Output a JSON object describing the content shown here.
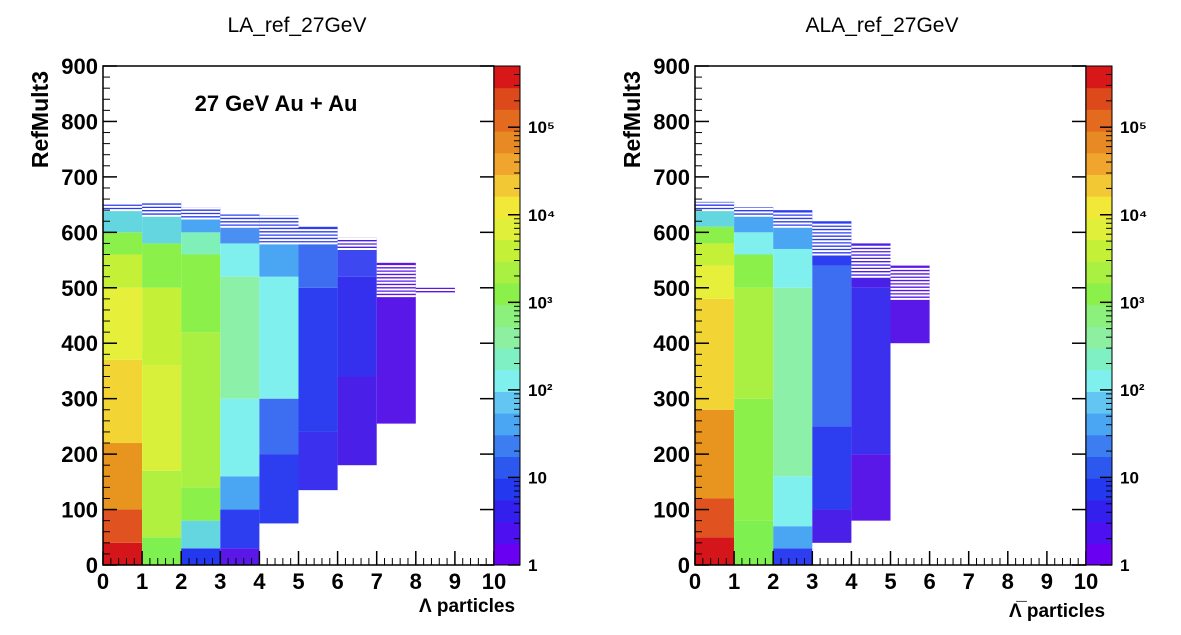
{
  "chart_data": [
    {
      "type": "heatmap",
      "title": "LA_ref_27GeV",
      "xlabel": "Λ particles",
      "ylabel": "RefMult3",
      "annotation": "27 GeV Au + Au",
      "xlim": [
        0,
        10
      ],
      "ylim": [
        0,
        900
      ],
      "x_ticks": [
        "0",
        "1",
        "2",
        "3",
        "4",
        "5",
        "6",
        "7",
        "8",
        "9",
        "10"
      ],
      "y_ticks": [
        "0",
        "100",
        "200",
        "300",
        "400",
        "500",
        "600",
        "700",
        "800",
        "900"
      ],
      "z_scale": "log",
      "z_range": [
        1,
        500000
      ],
      "z_ticks": [
        {
          "value": 1,
          "label": "1"
        },
        {
          "value": 10,
          "label": "10"
        },
        {
          "value": 100,
          "label": "10²"
        },
        {
          "value": 1000,
          "label": "10³"
        },
        {
          "value": 10000,
          "label": "10⁴"
        },
        {
          "value": 100000,
          "label": "10⁵"
        }
      ],
      "bins": [
        {
          "x": 0,
          "ymax": 650,
          "colors": [
            [
              0,
              "#d4161a"
            ],
            [
              40,
              "#e05220"
            ],
            [
              100,
              "#e8951f"
            ],
            [
              220,
              "#f2d535"
            ],
            [
              370,
              "#e6f03a"
            ],
            [
              500,
              "#c4f038"
            ],
            [
              560,
              "#8cf04a"
            ],
            [
              600,
              "#63d6e0"
            ],
            [
              640,
              "#2d3ef0"
            ]
          ]
        },
        {
          "x": 1,
          "ymax": 655,
          "colors": [
            [
              0,
              "#7ef050"
            ],
            [
              50,
              "#b2f040"
            ],
            [
              170,
              "#d8f03a"
            ],
            [
              360,
              "#c4f038"
            ],
            [
              500,
              "#8cf04a"
            ],
            [
              580,
              "#63d6e0"
            ],
            [
              630,
              "#2d3ef0"
            ]
          ]
        },
        {
          "x": 2,
          "ymax": 645,
          "colors": [
            [
              0,
              "#2438f0"
            ],
            [
              30,
              "#63d6e0"
            ],
            [
              80,
              "#8cf04a"
            ],
            [
              140,
              "#a9f042"
            ],
            [
              420,
              "#8cf04a"
            ],
            [
              560,
              "#7ff0b8"
            ],
            [
              600,
              "#4aa6f2"
            ],
            [
              625,
              "#2d3ef0"
            ]
          ]
        },
        {
          "x": 3,
          "ymax": 635,
          "colors": [
            [
              0,
              "#5a18e8"
            ],
            [
              30,
              "#2d3ef0"
            ],
            [
              100,
              "#4aa6f2"
            ],
            [
              160,
              "#7ff0ee"
            ],
            [
              300,
              "#8cf0a8"
            ],
            [
              520,
              "#7ff0ee"
            ],
            [
              580,
              "#4a90f2"
            ],
            [
              610,
              "#2d3ef0"
            ]
          ]
        },
        {
          "x": 4,
          "ymax": 630,
          "colors": [
            [
              75,
              "#2d3ef0"
            ],
            [
              200,
              "#3d6ef2"
            ],
            [
              300,
              "#7ff0ee"
            ],
            [
              520,
              "#4aa6f2"
            ],
            [
              580,
              "#2d3ef0"
            ]
          ]
        },
        {
          "x": 5,
          "ymax": 610,
          "colors": [
            [
              135,
              "#3a30ee"
            ],
            [
              240,
              "#2d3ef0"
            ],
            [
              500,
              "#3d6ef2"
            ],
            [
              580,
              "#2d3ef0"
            ]
          ]
        },
        {
          "x": 6,
          "ymax": 590,
          "colors": [
            [
              180,
              "#4a20e8"
            ],
            [
              340,
              "#3430ee"
            ],
            [
              520,
              "#3d48f0"
            ],
            [
              570,
              "#4a20e8"
            ]
          ]
        },
        {
          "x": 7,
          "ymax": 545,
          "colors": [
            [
              255,
              "#5a18e8"
            ]
          ]
        },
        {
          "x": 8,
          "ymax": 500,
          "colors": [
            [
              490,
              "#5a18e8"
            ]
          ]
        }
      ]
    },
    {
      "type": "heatmap",
      "title": "ALA_ref_27GeV",
      "xlabel": "Λ̅ particles",
      "ylabel": "RefMult3",
      "xlim": [
        0,
        10
      ],
      "ylim": [
        0,
        900
      ],
      "x_ticks": [
        "0",
        "1",
        "2",
        "3",
        "4",
        "5",
        "6",
        "7",
        "8",
        "9",
        "10"
      ],
      "y_ticks": [
        "0",
        "100",
        "200",
        "300",
        "400",
        "500",
        "600",
        "700",
        "800",
        "900"
      ],
      "z_scale": "log",
      "z_range": [
        1,
        500000
      ],
      "z_ticks": [
        {
          "value": 1,
          "label": "1"
        },
        {
          "value": 10,
          "label": "10"
        },
        {
          "value": 100,
          "label": "10²"
        },
        {
          "value": 1000,
          "label": "10³"
        },
        {
          "value": 10000,
          "label": "10⁴"
        },
        {
          "value": 100000,
          "label": "10⁵"
        }
      ],
      "bins": [
        {
          "x": 0,
          "ymax": 655,
          "colors": [
            [
              0,
              "#d4161a"
            ],
            [
              50,
              "#e05220"
            ],
            [
              120,
              "#e8951f"
            ],
            [
              280,
              "#f2d535"
            ],
            [
              480,
              "#e6f03a"
            ],
            [
              540,
              "#c4f038"
            ],
            [
              580,
              "#8cf04a"
            ],
            [
              610,
              "#63d6e0"
            ],
            [
              640,
              "#2d3ef0"
            ]
          ]
        },
        {
          "x": 1,
          "ymax": 645,
          "colors": [
            [
              0,
              "#7ef050"
            ],
            [
              80,
              "#8cf04a"
            ],
            [
              300,
              "#a9f042"
            ],
            [
              500,
              "#8cf04a"
            ],
            [
              560,
              "#7ff0ee"
            ],
            [
              600,
              "#4aa6f2"
            ],
            [
              630,
              "#2d3ef0"
            ]
          ]
        },
        {
          "x": 2,
          "ymax": 640,
          "colors": [
            [
              0,
              "#2d3ef0"
            ],
            [
              30,
              "#4aa6f2"
            ],
            [
              70,
              "#7ff0ee"
            ],
            [
              160,
              "#8cf0a8"
            ],
            [
              500,
              "#7ff0ee"
            ],
            [
              570,
              "#4aa6f2"
            ],
            [
              610,
              "#2d3ef0"
            ]
          ]
        },
        {
          "x": 3,
          "ymax": 620,
          "colors": [
            [
              40,
              "#4a20e8"
            ],
            [
              100,
              "#2d3ef0"
            ],
            [
              250,
              "#3d6ef2"
            ],
            [
              450,
              "#3d6ef2"
            ],
            [
              540,
              "#2d3ef0"
            ]
          ]
        },
        {
          "x": 4,
          "ymax": 580,
          "colors": [
            [
              80,
              "#5a18e8"
            ],
            [
              200,
              "#3a30ee"
            ],
            [
              500,
              "#4a20e8"
            ]
          ]
        },
        {
          "x": 5,
          "ymax": 540,
          "colors": [
            [
              400,
              "#5a18e8"
            ]
          ]
        }
      ]
    }
  ]
}
